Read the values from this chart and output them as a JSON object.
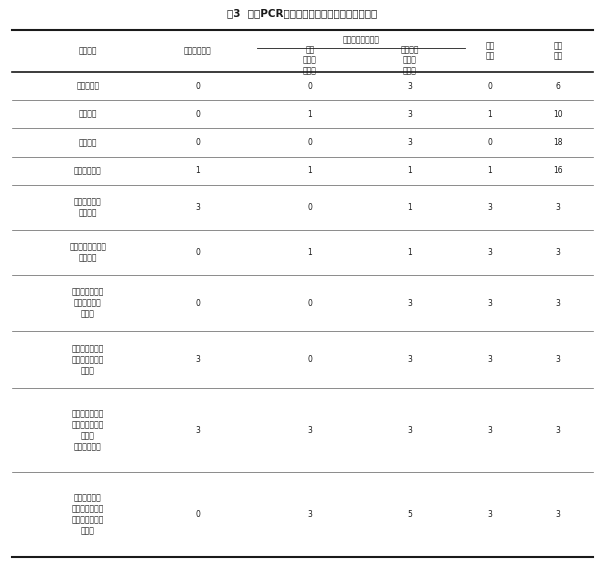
{
  "title": "表3  一步PCR检测试剂盒对待检样品的检测结果",
  "sub_header": "检出情况及其份数",
  "col_labels": [
    "样品名称",
    "人工污染份数",
    "沙门\n氏菌阳\n性份数",
    "单增李斯\n特菌阳\n性份数",
    "检出\n份数",
    "样品\n总数"
  ],
  "rows": [
    [
      "金枪鱼样品",
      "0",
      "0",
      "3",
      "0",
      "6"
    ],
    [
      "带鱼样品",
      "0",
      "1",
      "3",
      "1",
      "10"
    ],
    [
      "龙虾样品",
      "0",
      "0",
      "3",
      "0",
      "18"
    ],
    [
      "猪肉牛肉样品",
      "1",
      "1",
      "1",
      "1",
      "16"
    ],
    [
      "人工污染沙门\n氏菌样品",
      "3",
      "0",
      "1",
      "3",
      "3"
    ],
    [
      "人工污染单增李斯\n特菌样品",
      "0",
      "1",
      "1",
      "3",
      "3"
    ],
    [
      "沙门氏菌与单增\n李斯特菌共污\n染样品",
      "0",
      "0",
      "3",
      "3",
      "3"
    ],
    [
      "沙门氏菌污染与\n猪肉牛肉样品混\n合样品",
      "3",
      "0",
      "3",
      "3",
      "3"
    ],
    [
      "单增李斯特菌污\n染与牛肉样品混\n合样品\n市售食品样品",
      "3",
      "3",
      "3",
      "3",
      "3"
    ],
    [
      "市售食品样品\n单增李斯特菌污\n染与牛肉样品混\n合样品",
      "0",
      "3",
      "5",
      "3",
      "3"
    ]
  ],
  "fig_width": 6.05,
  "fig_height": 5.72,
  "dpi": 100,
  "background": "#ffffff",
  "text_color": "#1a1a1a",
  "font_size": 5.5,
  "title_fontsize": 7.5
}
